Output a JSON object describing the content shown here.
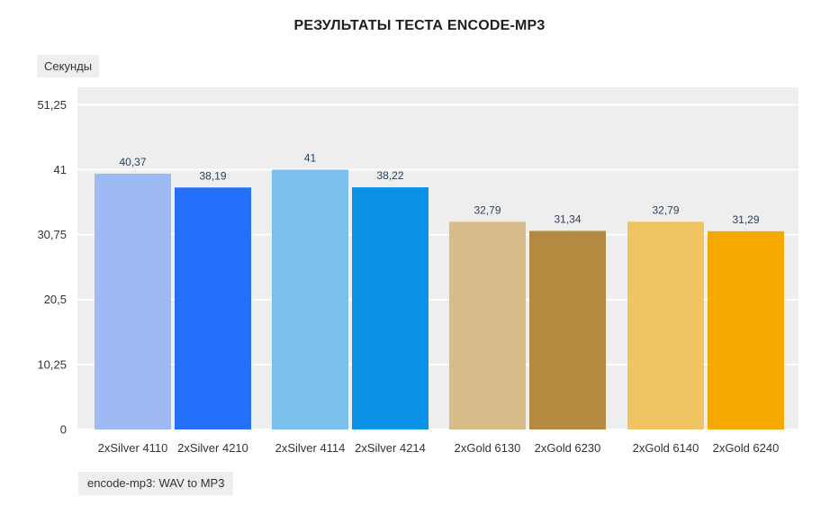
{
  "chart_data": {
    "type": "bar",
    "title": "РЕЗУЛЬТАТЫ ТЕСТА ENCODE-MP3",
    "ylabel": "Секунды",
    "xlabel": "encode-mp3: WAV to MP3",
    "categories": [
      "2xSilver 4110",
      "2xSilver 4210",
      "2xSilver 4114",
      "2xSilver 4214",
      "2xGold 6130",
      "2xGold 6230",
      "2xGold 6140",
      "2xGold 6240"
    ],
    "values": [
      40.37,
      38.19,
      41,
      38.22,
      32.79,
      31.34,
      32.79,
      31.29
    ],
    "value_labels": [
      "40,37",
      "38,19",
      "41",
      "38,22",
      "32,79",
      "31,34",
      "32,79",
      "31,29"
    ],
    "colors": [
      "#9dbaf5",
      "#2570fa",
      "#7bc0ed",
      "#0a93e6",
      "#d7bc89",
      "#b38a3f",
      "#f0c462",
      "#f5a800"
    ],
    "yticks": [
      0,
      10.25,
      20.5,
      30.75,
      41,
      51.25
    ],
    "ytick_labels": [
      "0",
      "10,25",
      "20,5",
      "30,75",
      "41",
      "51,25"
    ],
    "ylim": [
      0,
      54
    ],
    "grid": true,
    "plot_background": "#eeeeee",
    "grid_color": "#ffffff"
  }
}
